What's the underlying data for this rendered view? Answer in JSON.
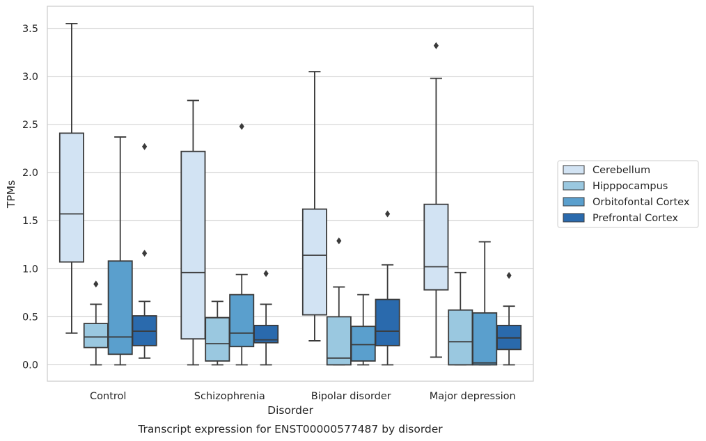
{
  "caption": "Transcript expression for ENST00000577487 by disorder",
  "colors": {
    "grid": "#cccccc",
    "frame": "#cccccc",
    "line": "#3a3a3a",
    "text": "#262626"
  },
  "chart_data": {
    "type": "box",
    "title": "",
    "xlabel": "Disorder",
    "ylabel": "TPMs",
    "ylim": [
      -0.17,
      3.73
    ],
    "yticks": [
      0.0,
      0.5,
      1.0,
      1.5,
      2.0,
      2.5,
      3.0,
      3.5
    ],
    "ytick_labels": [
      "0.0",
      "0.5",
      "1.0",
      "1.5",
      "2.0",
      "2.5",
      "3.0",
      "3.5"
    ],
    "grid": true,
    "legend_position": "right-center",
    "categories": [
      "Control",
      "Schizophrenia",
      "Bipolar disorder",
      "Major depression"
    ],
    "series": [
      {
        "name": "Cerebellum",
        "color": "#d2e3f3",
        "boxes": [
          {
            "whislo": 0.33,
            "q1": 1.07,
            "med": 1.57,
            "q3": 2.41,
            "whishi": 3.55,
            "fliers": []
          },
          {
            "whislo": 0.0,
            "q1": 0.27,
            "med": 0.96,
            "q3": 2.22,
            "whishi": 2.75,
            "fliers": []
          },
          {
            "whislo": 0.25,
            "q1": 0.52,
            "med": 1.14,
            "q3": 1.62,
            "whishi": 3.05,
            "fliers": []
          },
          {
            "whislo": 0.08,
            "q1": 0.78,
            "med": 1.02,
            "q3": 1.67,
            "whishi": 2.98,
            "fliers": [
              3.32
            ]
          }
        ]
      },
      {
        "name": "Hipppocampus",
        "color": "#9ac8e0",
        "boxes": [
          {
            "whislo": 0.0,
            "q1": 0.18,
            "med": 0.29,
            "q3": 0.43,
            "whishi": 0.63,
            "fliers": [
              0.84
            ]
          },
          {
            "whislo": 0.0,
            "q1": 0.04,
            "med": 0.22,
            "q3": 0.49,
            "whishi": 0.66,
            "fliers": []
          },
          {
            "whislo": 0.0,
            "q1": 0.0,
            "med": 0.07,
            "q3": 0.5,
            "whishi": 0.81,
            "fliers": [
              1.29
            ]
          },
          {
            "whislo": 0.0,
            "q1": 0.0,
            "med": 0.24,
            "q3": 0.57,
            "whishi": 0.96,
            "fliers": []
          }
        ]
      },
      {
        "name": "Orbitofontal Cortex",
        "color": "#5a9fcd",
        "boxes": [
          {
            "whislo": 0.0,
            "q1": 0.11,
            "med": 0.29,
            "q3": 1.08,
            "whishi": 2.37,
            "fliers": []
          },
          {
            "whislo": 0.0,
            "q1": 0.19,
            "med": 0.33,
            "q3": 0.73,
            "whishi": 0.94,
            "fliers": [
              2.48
            ]
          },
          {
            "whislo": 0.0,
            "q1": 0.04,
            "med": 0.21,
            "q3": 0.4,
            "whishi": 0.73,
            "fliers": []
          },
          {
            "whislo": 0.0,
            "q1": 0.0,
            "med": 0.02,
            "q3": 0.54,
            "whishi": 1.28,
            "fliers": []
          }
        ]
      },
      {
        "name": "Prefrontal Cortex",
        "color": "#2a6aad",
        "boxes": [
          {
            "whislo": 0.07,
            "q1": 0.2,
            "med": 0.35,
            "q3": 0.51,
            "whishi": 0.66,
            "fliers": [
              1.16,
              2.27
            ]
          },
          {
            "whislo": 0.0,
            "q1": 0.23,
            "med": 0.26,
            "q3": 0.41,
            "whishi": 0.63,
            "fliers": [
              0.95
            ]
          },
          {
            "whislo": 0.0,
            "q1": 0.2,
            "med": 0.35,
            "q3": 0.68,
            "whishi": 1.04,
            "fliers": [
              1.57
            ]
          },
          {
            "whislo": 0.0,
            "q1": 0.16,
            "med": 0.28,
            "q3": 0.41,
            "whishi": 0.61,
            "fliers": [
              0.93
            ]
          }
        ]
      }
    ]
  }
}
